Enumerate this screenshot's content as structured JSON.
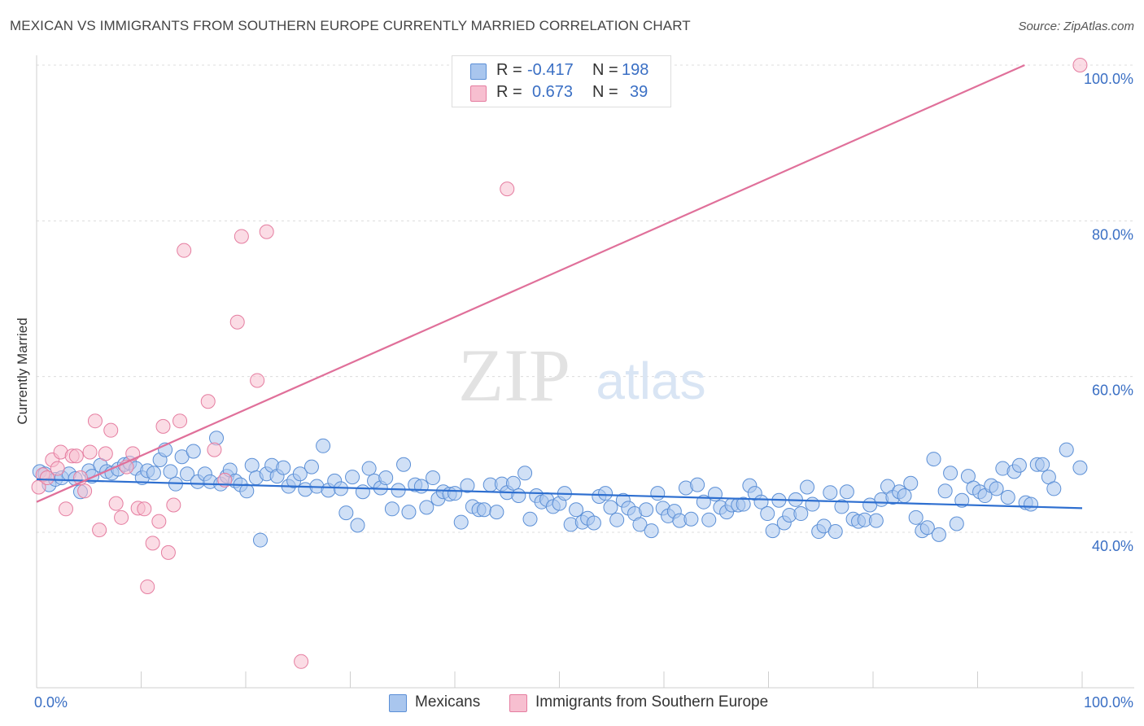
{
  "title": "MEXICAN VS IMMIGRANTS FROM SOUTHERN EUROPE CURRENTLY MARRIED CORRELATION CHART",
  "source": "Source: ZipAtlas.com",
  "watermark": {
    "zip": "ZIP",
    "atlas": "atlas"
  },
  "legend": {
    "r_label": "R =",
    "n_label": "N =",
    "rows": [
      {
        "r": "-0.417",
        "n": "198",
        "color": "#a9c6ee",
        "edge": "#5b8fd6"
      },
      {
        "r": "0.673",
        "n": "39",
        "color": "#f7bfd0",
        "edge": "#e57da0"
      }
    ]
  },
  "bottom_legend": [
    {
      "label": "Mexicans",
      "color": "#a9c6ee",
      "edge": "#5b8fd6"
    },
    {
      "label": "Immigrants from Southern Europe",
      "color": "#f7bfd0",
      "edge": "#e57da0"
    }
  ],
  "chart_data": {
    "type": "scatter",
    "title": "MEXICAN VS IMMIGRANTS FROM SOUTHERN EUROPE CURRENTLY MARRIED CORRELATION CHART",
    "xlabel": "",
    "ylabel": "Currently Married",
    "xlim": [
      0,
      100
    ],
    "ylim": [
      20,
      102
    ],
    "x_tick_labels": [
      "0.0%",
      "100.0%"
    ],
    "y_ticks": [
      40,
      60,
      80,
      100
    ],
    "y_tick_labels": [
      "40.0%",
      "60.0%",
      "80.0%",
      "100.0%"
    ],
    "grid": true,
    "series": [
      {
        "name": "Mexicans",
        "color": "#5b8fd6",
        "fill": "#a9c6ee",
        "trend": {
          "x": [
            0,
            100
          ],
          "y": [
            46.8,
            43.1
          ],
          "color": "#2e6fd0"
        },
        "points": [
          [
            0.3,
            47.8
          ],
          [
            0.8,
            47.5
          ],
          [
            1.2,
            46.1
          ],
          [
            1.8,
            46.8
          ],
          [
            2.4,
            47.0
          ],
          [
            3.1,
            47.5
          ],
          [
            3.7,
            46.9
          ],
          [
            4.2,
            45.2
          ],
          [
            5.0,
            47.9
          ],
          [
            5.3,
            47.2
          ],
          [
            6.1,
            48.6
          ],
          [
            6.7,
            47.8
          ],
          [
            7.2,
            47.6
          ],
          [
            7.8,
            48.1
          ],
          [
            8.4,
            48.7
          ],
          [
            8.9,
            48.9
          ],
          [
            9.5,
            48.2
          ],
          [
            10.1,
            47.0
          ],
          [
            10.6,
            47.9
          ],
          [
            11.2,
            47.6
          ],
          [
            11.8,
            49.3
          ],
          [
            12.3,
            50.6
          ],
          [
            12.8,
            47.8
          ],
          [
            13.3,
            46.2
          ],
          [
            13.9,
            49.7
          ],
          [
            14.4,
            47.5
          ],
          [
            15.0,
            50.4
          ],
          [
            15.4,
            46.5
          ],
          [
            16.1,
            47.5
          ],
          [
            16.6,
            46.5
          ],
          [
            17.2,
            52.1
          ],
          [
            17.6,
            46.2
          ],
          [
            18.2,
            47.2
          ],
          [
            18.5,
            48.0
          ],
          [
            19.0,
            46.6
          ],
          [
            19.5,
            46.1
          ],
          [
            20.1,
            45.3
          ],
          [
            20.6,
            48.6
          ],
          [
            21.0,
            47.0
          ],
          [
            21.4,
            39.0
          ],
          [
            22.0,
            47.5
          ],
          [
            22.5,
            48.6
          ],
          [
            23.0,
            47.2
          ],
          [
            23.6,
            48.3
          ],
          [
            24.1,
            45.9
          ],
          [
            24.6,
            46.6
          ],
          [
            25.2,
            47.5
          ],
          [
            25.7,
            45.5
          ],
          [
            26.3,
            48.4
          ],
          [
            26.8,
            45.9
          ],
          [
            27.4,
            51.1
          ],
          [
            27.9,
            45.4
          ],
          [
            28.5,
            46.6
          ],
          [
            29.1,
            45.6
          ],
          [
            29.6,
            42.5
          ],
          [
            30.2,
            47.1
          ],
          [
            30.7,
            40.9
          ],
          [
            31.2,
            45.2
          ],
          [
            31.8,
            48.2
          ],
          [
            32.3,
            46.6
          ],
          [
            32.9,
            45.7
          ],
          [
            33.4,
            47.0
          ],
          [
            34.0,
            43.0
          ],
          [
            34.6,
            45.4
          ],
          [
            35.1,
            48.7
          ],
          [
            35.6,
            42.6
          ],
          [
            36.2,
            46.1
          ],
          [
            36.8,
            45.9
          ],
          [
            37.3,
            43.2
          ],
          [
            37.9,
            47.0
          ],
          [
            38.4,
            44.3
          ],
          [
            38.9,
            45.2
          ],
          [
            39.5,
            44.9
          ],
          [
            40.0,
            45.0
          ],
          [
            40.6,
            41.3
          ],
          [
            41.2,
            46.0
          ],
          [
            41.7,
            43.3
          ],
          [
            42.3,
            42.9
          ],
          [
            42.8,
            42.9
          ],
          [
            43.4,
            46.1
          ],
          [
            44.0,
            42.6
          ],
          [
            44.5,
            46.2
          ],
          [
            45.0,
            45.1
          ],
          [
            45.6,
            46.3
          ],
          [
            46.1,
            44.7
          ],
          [
            46.7,
            47.6
          ],
          [
            47.2,
            41.7
          ],
          [
            47.8,
            44.7
          ],
          [
            48.3,
            43.9
          ],
          [
            48.8,
            44.2
          ],
          [
            49.4,
            43.3
          ],
          [
            50.0,
            43.7
          ],
          [
            50.5,
            45.0
          ],
          [
            51.1,
            41.0
          ],
          [
            51.6,
            42.9
          ],
          [
            52.2,
            41.3
          ],
          [
            52.7,
            41.8
          ],
          [
            53.3,
            41.2
          ],
          [
            53.8,
            44.6
          ],
          [
            54.4,
            45.0
          ],
          [
            54.9,
            43.2
          ],
          [
            55.5,
            41.6
          ],
          [
            56.1,
            44.1
          ],
          [
            56.6,
            43.1
          ],
          [
            57.2,
            42.4
          ],
          [
            57.7,
            41.0
          ],
          [
            58.3,
            42.9
          ],
          [
            58.8,
            40.2
          ],
          [
            59.4,
            45.0
          ],
          [
            59.9,
            43.1
          ],
          [
            60.4,
            42.1
          ],
          [
            61.0,
            42.7
          ],
          [
            61.5,
            41.5
          ],
          [
            62.1,
            45.7
          ],
          [
            62.6,
            41.7
          ],
          [
            63.2,
            46.1
          ],
          [
            63.8,
            43.9
          ],
          [
            64.3,
            41.6
          ],
          [
            64.9,
            44.9
          ],
          [
            65.4,
            43.2
          ],
          [
            66.0,
            42.6
          ],
          [
            66.5,
            43.5
          ],
          [
            67.1,
            43.5
          ],
          [
            67.6,
            43.6
          ],
          [
            68.2,
            46.0
          ],
          [
            68.7,
            45.0
          ],
          [
            69.3,
            43.9
          ],
          [
            69.9,
            42.4
          ],
          [
            70.4,
            40.2
          ],
          [
            71.0,
            44.1
          ],
          [
            71.5,
            41.2
          ],
          [
            72.0,
            42.2
          ],
          [
            72.6,
            44.2
          ],
          [
            73.1,
            42.4
          ],
          [
            73.7,
            45.8
          ],
          [
            74.2,
            43.6
          ],
          [
            74.8,
            40.1
          ],
          [
            75.3,
            40.8
          ],
          [
            75.9,
            45.1
          ],
          [
            76.4,
            40.1
          ],
          [
            77.0,
            43.3
          ],
          [
            77.5,
            45.2
          ],
          [
            78.1,
            41.7
          ],
          [
            78.6,
            41.4
          ],
          [
            79.2,
            41.6
          ],
          [
            79.7,
            43.5
          ],
          [
            80.3,
            41.5
          ],
          [
            80.8,
            44.2
          ],
          [
            81.4,
            45.9
          ],
          [
            81.9,
            44.5
          ],
          [
            82.5,
            45.2
          ],
          [
            83.0,
            44.7
          ],
          [
            83.6,
            46.3
          ],
          [
            84.1,
            41.9
          ],
          [
            84.7,
            40.2
          ],
          [
            85.2,
            40.6
          ],
          [
            85.8,
            49.4
          ],
          [
            86.3,
            39.7
          ],
          [
            86.9,
            45.3
          ],
          [
            87.4,
            47.6
          ],
          [
            88.0,
            41.1
          ],
          [
            88.5,
            44.1
          ],
          [
            89.1,
            47.2
          ],
          [
            89.6,
            45.7
          ],
          [
            90.2,
            45.2
          ],
          [
            90.7,
            44.7
          ],
          [
            91.3,
            46.0
          ],
          [
            91.8,
            45.6
          ],
          [
            92.4,
            48.2
          ],
          [
            92.9,
            44.5
          ],
          [
            93.5,
            47.8
          ],
          [
            94.0,
            48.6
          ],
          [
            94.6,
            43.8
          ],
          [
            95.1,
            43.6
          ],
          [
            95.7,
            48.7
          ],
          [
            96.2,
            48.7
          ],
          [
            96.8,
            47.1
          ],
          [
            97.3,
            45.6
          ],
          [
            98.5,
            50.6
          ],
          [
            99.8,
            48.3
          ]
        ]
      },
      {
        "name": "Immigrants from Southern Europe",
        "color": "#e57da0",
        "fill": "#f7bfd0",
        "trend": {
          "x": [
            0,
            94.5
          ],
          "y": [
            43.9,
            100
          ],
          "color": "#e0709a"
        },
        "points": [
          [
            0.2,
            45.8
          ],
          [
            0.6,
            47.4
          ],
          [
            1.0,
            47.0
          ],
          [
            1.5,
            49.3
          ],
          [
            2.0,
            48.2
          ],
          [
            2.3,
            50.3
          ],
          [
            2.8,
            43.0
          ],
          [
            3.4,
            49.8
          ],
          [
            3.8,
            49.8
          ],
          [
            4.2,
            47.0
          ],
          [
            4.6,
            45.3
          ],
          [
            5.1,
            50.3
          ],
          [
            5.6,
            54.3
          ],
          [
            6.0,
            40.3
          ],
          [
            6.6,
            50.1
          ],
          [
            7.1,
            53.1
          ],
          [
            7.6,
            43.7
          ],
          [
            8.1,
            41.9
          ],
          [
            8.6,
            48.4
          ],
          [
            9.2,
            50.1
          ],
          [
            9.7,
            43.1
          ],
          [
            10.3,
            43.0
          ],
          [
            10.6,
            33.0
          ],
          [
            11.1,
            38.6
          ],
          [
            11.7,
            41.4
          ],
          [
            12.1,
            53.6
          ],
          [
            12.6,
            37.4
          ],
          [
            13.1,
            43.5
          ],
          [
            13.7,
            54.3
          ],
          [
            14.1,
            76.2
          ],
          [
            16.4,
            56.8
          ],
          [
            17.0,
            50.6
          ],
          [
            18.0,
            46.7
          ],
          [
            19.2,
            67.0
          ],
          [
            19.6,
            78.0
          ],
          [
            21.1,
            59.5
          ],
          [
            22.0,
            78.6
          ],
          [
            25.3,
            23.4
          ],
          [
            45.0,
            84.1
          ],
          [
            99.8,
            100.0
          ]
        ]
      }
    ]
  }
}
